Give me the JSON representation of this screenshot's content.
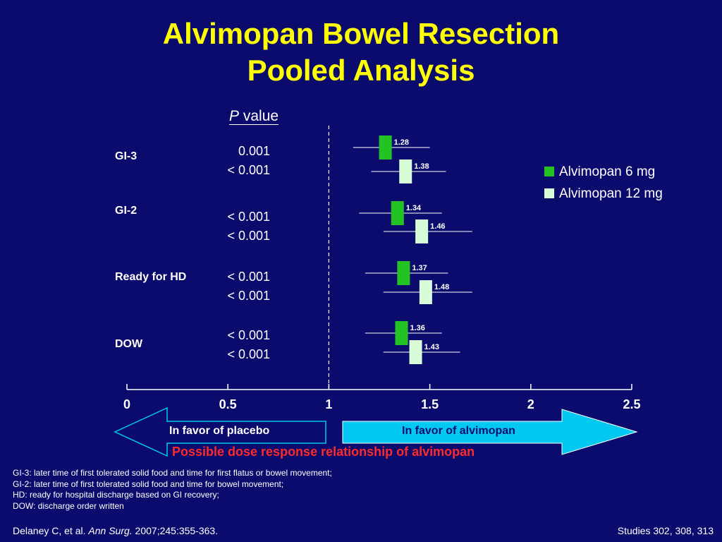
{
  "slide": {
    "title_line1": "Alvimopan Bowel Resection",
    "title_line2": "Pooled Analysis",
    "pvalue_header_italic": "P",
    "pvalue_header_rest": " value",
    "arrow_left_label": "In favor of placebo",
    "arrow_right_label": "In favor of alvimopan",
    "conclusion": "Possible dose response relationship of alvimopan",
    "footnotes": [
      "GI-3: later time of first tolerated solid food and time for first flatus or bowel movement;",
      "GI-2: later time of first tolerated solid food and time for bowel movement;",
      "HD: ready for hospital discharge based on GI recovery;",
      "DOW: discharge order written"
    ],
    "citation_pre": "Delaney C, et al. ",
    "citation_journal": "Ann Surg.",
    "citation_post": " 2007;245:355-363.",
    "studies": "Studies 302, 308, 313",
    "colors": {
      "background": "#0b0b6e",
      "title": "#ffff00",
      "series_6mg": "#22c322",
      "series_12mg": "#d8fbd8",
      "arrow_right_fill": "#00c8f0",
      "conclusion": "#ff2a2a"
    }
  },
  "chart_data": {
    "type": "forest",
    "xlim": [
      0,
      2.5
    ],
    "xticks": [
      "0",
      "0.5",
      "1",
      "1.5",
      "2",
      "2.5"
    ],
    "xtick_values": [
      0,
      0.5,
      1,
      1.5,
      2,
      2.5
    ],
    "reference_line": 1,
    "legend": [
      {
        "name": "Alvimopan 6 mg",
        "color": "#22c322"
      },
      {
        "name": "Alvimopan 12 mg",
        "color": "#d8fbd8"
      }
    ],
    "rows": [
      {
        "label": "GI-3",
        "pvalues": [
          "0.001",
          "< 0.001"
        ],
        "estimates": [
          {
            "series": "Alvimopan 6 mg",
            "value": 1.28,
            "label": "1.28",
            "ci": [
              1.12,
              1.5
            ]
          },
          {
            "series": "Alvimopan 12 mg",
            "value": 1.38,
            "label": "1.38",
            "ci": [
              1.21,
              1.58
            ]
          }
        ]
      },
      {
        "label": "GI-2",
        "pvalues": [
          "< 0.001",
          "< 0.001"
        ],
        "estimates": [
          {
            "series": "Alvimopan 6 mg",
            "value": 1.34,
            "label": "1.34",
            "ci": [
              1.15,
              1.56
            ]
          },
          {
            "series": "Alvimopan 12 mg",
            "value": 1.46,
            "label": "1.46",
            "ci": [
              1.27,
              1.71
            ]
          }
        ]
      },
      {
        "label": "Ready for HD",
        "pvalues": [
          "< 0.001",
          "< 0.001"
        ],
        "estimates": [
          {
            "series": "Alvimopan 6 mg",
            "value": 1.37,
            "label": "1.37",
            "ci": [
              1.18,
              1.59
            ]
          },
          {
            "series": "Alvimopan 12 mg",
            "value": 1.48,
            "label": "1.48",
            "ci": [
              1.27,
              1.71
            ]
          }
        ]
      },
      {
        "label": "DOW",
        "pvalues": [
          "< 0.001",
          "< 0.001"
        ],
        "estimates": [
          {
            "series": "Alvimopan 6 mg",
            "value": 1.36,
            "label": "1.36",
            "ci": [
              1.18,
              1.56
            ]
          },
          {
            "series": "Alvimopan 12 mg",
            "value": 1.43,
            "label": "1.43",
            "ci": [
              1.27,
              1.65
            ]
          }
        ]
      }
    ]
  }
}
